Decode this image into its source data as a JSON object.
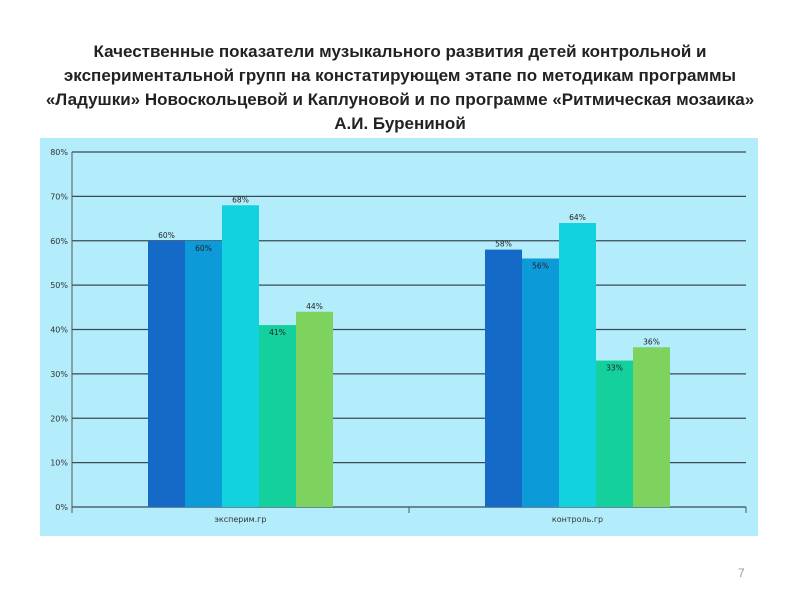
{
  "slide": {
    "title": "Качественные показатели музыкального развития детей контрольной и экспериментальной групп на констатирующем этапе по методикам программы «Ладушки» Новоскольцевой и Каплуновой и по программе «Ритмическая мозаика» А.И. Бурениной",
    "page_number": "7"
  },
  "chart_data": {
    "type": "bar",
    "title": "",
    "xlabel": "",
    "ylabel": "",
    "categories": [
      "эксперим.гр",
      "контроль.гр"
    ],
    "series": [
      {
        "values": [
          60,
          58
        ],
        "color": "#1569c7",
        "labels": [
          "60%",
          "58%"
        ],
        "label_position": "above"
      },
      {
        "values": [
          60,
          56
        ],
        "color": "#0d9ad8",
        "labels": [
          "60%",
          "56%"
        ],
        "label_position": "inside"
      },
      {
        "values": [
          68,
          64
        ],
        "color": "#12d2e0",
        "labels": [
          "68%",
          "64%"
        ],
        "label_position": "above"
      },
      {
        "values": [
          41,
          33
        ],
        "color": "#14d09c",
        "labels": [
          "41%",
          "33%"
        ],
        "label_position": "inside"
      },
      {
        "values": [
          44,
          36
        ],
        "color": "#7ed25e",
        "labels": [
          "44%",
          "36%"
        ],
        "label_position": "above"
      }
    ],
    "y_ticks": [
      "0%",
      "10%",
      "20%",
      "30%",
      "40%",
      "50%",
      "60%",
      "70%",
      "80%"
    ],
    "ylim": [
      0,
      80
    ],
    "grid": true,
    "legend": "none",
    "background_color": "#b3ecfb"
  }
}
